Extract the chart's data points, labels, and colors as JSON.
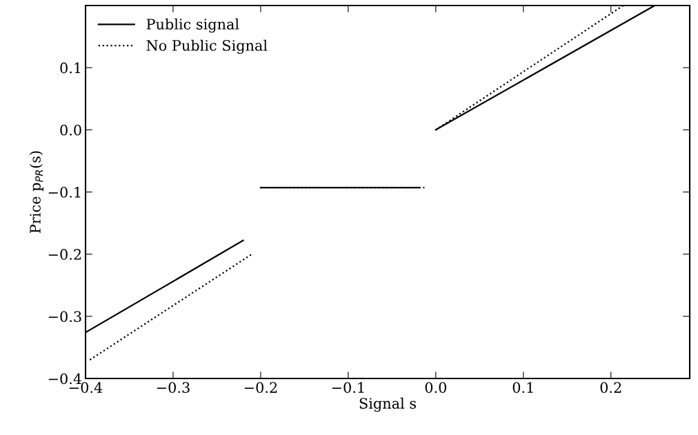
{
  "chart_data": {
    "type": "line",
    "xlabel": "Signal s",
    "ylabel": "Price p$_{PR}$(s)",
    "xlim": [
      -0.4,
      0.29
    ],
    "ylim": [
      -0.4,
      0.2
    ],
    "xticks": [
      {
        "value": -0.4,
        "label": "−0.4"
      },
      {
        "value": -0.3,
        "label": "−0.3"
      },
      {
        "value": -0.2,
        "label": "−0.2"
      },
      {
        "value": -0.1,
        "label": "−0.1"
      },
      {
        "value": 0.0,
        "label": "0.0"
      },
      {
        "value": 0.1,
        "label": "0.1"
      },
      {
        "value": 0.2,
        "label": "0.2"
      }
    ],
    "yticks": [
      {
        "value": -0.4,
        "label": "−0.4"
      },
      {
        "value": -0.3,
        "label": "−0.3"
      },
      {
        "value": -0.2,
        "label": "−0.2"
      },
      {
        "value": -0.1,
        "label": "−0.1"
      },
      {
        "value": 0.0,
        "label": "0.0"
      },
      {
        "value": 0.1,
        "label": "0.1"
      }
    ],
    "grid": false,
    "legend": "top left",
    "marker": "none",
    "series": [
      {
        "name": "Public signal",
        "color": "#000000",
        "line_style": "solid",
        "x": [
          -0.4,
          -0.22,
          null,
          -0.2,
          -0.019,
          null,
          0.0,
          0.25
        ],
        "values": [
          -0.326,
          -0.178,
          null,
          -0.093,
          -0.093,
          null,
          0.0,
          0.2
        ]
      },
      {
        "name": "No Public Signal",
        "color": "#000000",
        "line_style": "dotted",
        "x": [
          -0.395,
          -0.21,
          null,
          -0.2,
          -0.013,
          null,
          0.0,
          0.214
        ],
        "values": [
          -0.37,
          -0.2,
          null,
          -0.093,
          -0.093,
          null,
          0.0,
          0.2
        ]
      }
    ]
  }
}
